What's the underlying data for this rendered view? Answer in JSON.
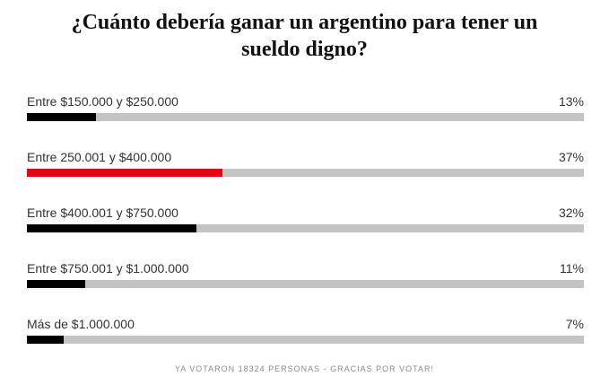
{
  "poll": {
    "question": "¿Cuánto debería ganar un argentino para tener un sueldo digno?",
    "options": [
      {
        "label": "Entre $150.000 y $250.000",
        "percent_text": "13%",
        "percent": 13,
        "color": "#000000"
      },
      {
        "label": "Entre 250.001 y $400.000",
        "percent_text": "37%",
        "percent": 37,
        "color": "#e30613"
      },
      {
        "label": "Entre $400.001 y $750.000",
        "percent_text": "32%",
        "percent": 32,
        "color": "#000000"
      },
      {
        "label": "Entre $750.001 y $1.000.000",
        "percent_text": "11%",
        "percent": 11,
        "color": "#000000"
      },
      {
        "label": "Más de $1.000.000",
        "percent_text": "7%",
        "percent": 7,
        "color": "#000000"
      }
    ],
    "footer": "YA VOTARON 18324 PERSONAS - GRACIAS POR VOTAR!",
    "track_color": "#c4c4c4"
  }
}
